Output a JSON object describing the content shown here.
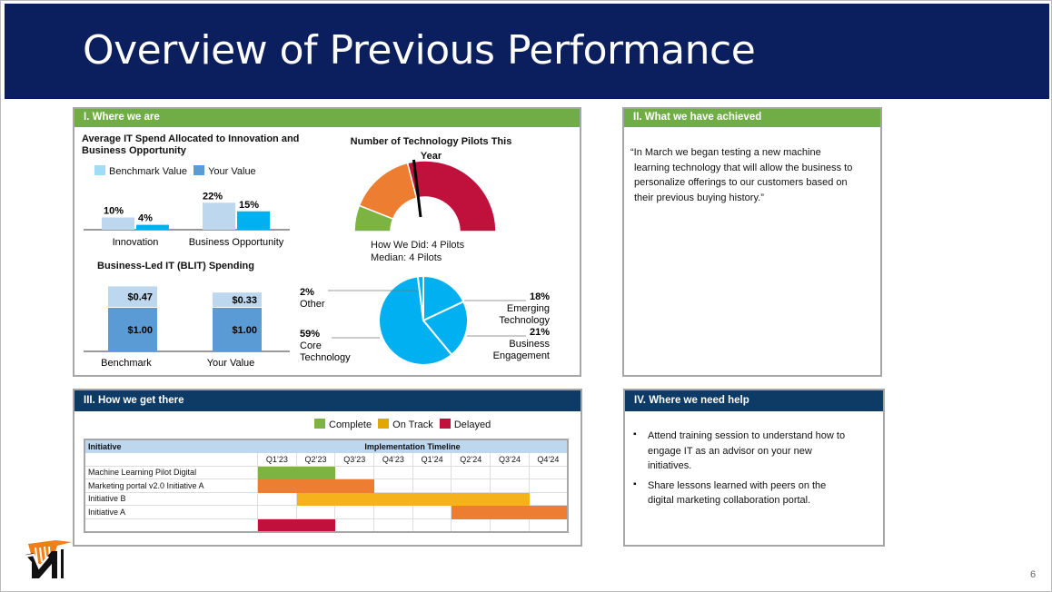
{
  "title": "Overview of Previous Performance",
  "page_number": "6",
  "colors": {
    "header": "#0b1f5e",
    "green": "#70ad47",
    "navy": "#0d3b66",
    "bench": "#bdd7ee",
    "your": "#00b0f0",
    "blit_your": "#5b9bd5",
    "complete": "#7cb342",
    "on_track": "#f5b21b",
    "delayed": "#c0103c",
    "orange": "#ed7d31"
  },
  "panel1": {
    "heading": "I.  Where we are"
  },
  "panel2": {
    "heading": "II.  What we have achieved",
    "quote": "“In March we began testing a new machine learning technology that will allow the business to personalize offerings to our customers based on their previous buying history.”"
  },
  "panel3": {
    "heading": "III.  How we get there",
    "legend": [
      "Complete",
      "On Track",
      "Delayed"
    ],
    "table": {
      "col_initiative": "Initiative",
      "col_timeline": "Implementation Timeline",
      "quarters": [
        "Q1’23",
        "Q2’23",
        "Q3’23",
        "Q4’23",
        "Q1’24",
        "Q2’24",
        "Q3’24",
        "Q4’24"
      ],
      "rows": [
        {
          "name": "Machine Learning Pilot Digital",
          "status": "complete",
          "start": 0,
          "end": 1
        },
        {
          "name": "Marketing portal v2.0 Initiative A",
          "status": "orange",
          "start": 0,
          "end": 2
        },
        {
          "name": "Initiative B",
          "status": "on_track",
          "start": 1,
          "end": 6
        },
        {
          "name": "Initiative A",
          "status": "orange",
          "start": 5,
          "end": 7
        },
        {
          "name": "",
          "status": "delayed",
          "start": 0,
          "end": 1
        }
      ]
    }
  },
  "panel4": {
    "heading": "IV.  Where we need help",
    "items": [
      "Attend training session to understand how to engage IT as an advisor on your new initiatives.",
      "Share lessons learned with peers on the digital marketing collaboration portal."
    ]
  },
  "chart_data": [
    {
      "type": "bar",
      "title": "Average IT Spend Allocated to Innovation and Business Opportunity",
      "categories": [
        "Innovation",
        "Business Opportunity"
      ],
      "series": [
        {
          "name": "Benchmark Value",
          "values": [
            10,
            22
          ],
          "labels": [
            "10%",
            "22%"
          ]
        },
        {
          "name": "Your Value",
          "values": [
            4,
            15
          ],
          "labels": [
            "4%",
            "15%"
          ]
        }
      ],
      "legend": "top-left"
    },
    {
      "type": "bar",
      "stacked": true,
      "title": "Business-Led IT (BLIT) Spending",
      "categories": [
        "Benchmark",
        "Your Value"
      ],
      "series": [
        {
          "values": [
            1.0,
            1.0
          ],
          "labels": [
            "$1.00",
            "$1.00"
          ]
        },
        {
          "values": [
            0.47,
            0.33
          ],
          "labels": [
            "$0.47",
            "$0.33"
          ]
        }
      ]
    },
    {
      "type": "gauge",
      "title": "Number of Technology Pilots This Year",
      "captions": [
        "How We Did: 4 Pilots",
        "Median: 4 Pilots"
      ],
      "segments": [
        {
          "color": "#7cb342",
          "fraction": 0.12
        },
        {
          "color": "#ed7d31",
          "fraction": 0.3
        },
        {
          "color": "#c0103c",
          "fraction": 0.58
        }
      ],
      "needle_fraction": 0.45
    },
    {
      "type": "pie",
      "slices": [
        {
          "label": "Emerging Technology",
          "value": 18,
          "pct": "18%"
        },
        {
          "label": "Business Engagement",
          "value": 21,
          "pct": "21%"
        },
        {
          "label": "Core Technology",
          "value": 59,
          "pct": "59%"
        },
        {
          "label": "Other",
          "value": 2,
          "pct": "2%"
        }
      ]
    }
  ]
}
